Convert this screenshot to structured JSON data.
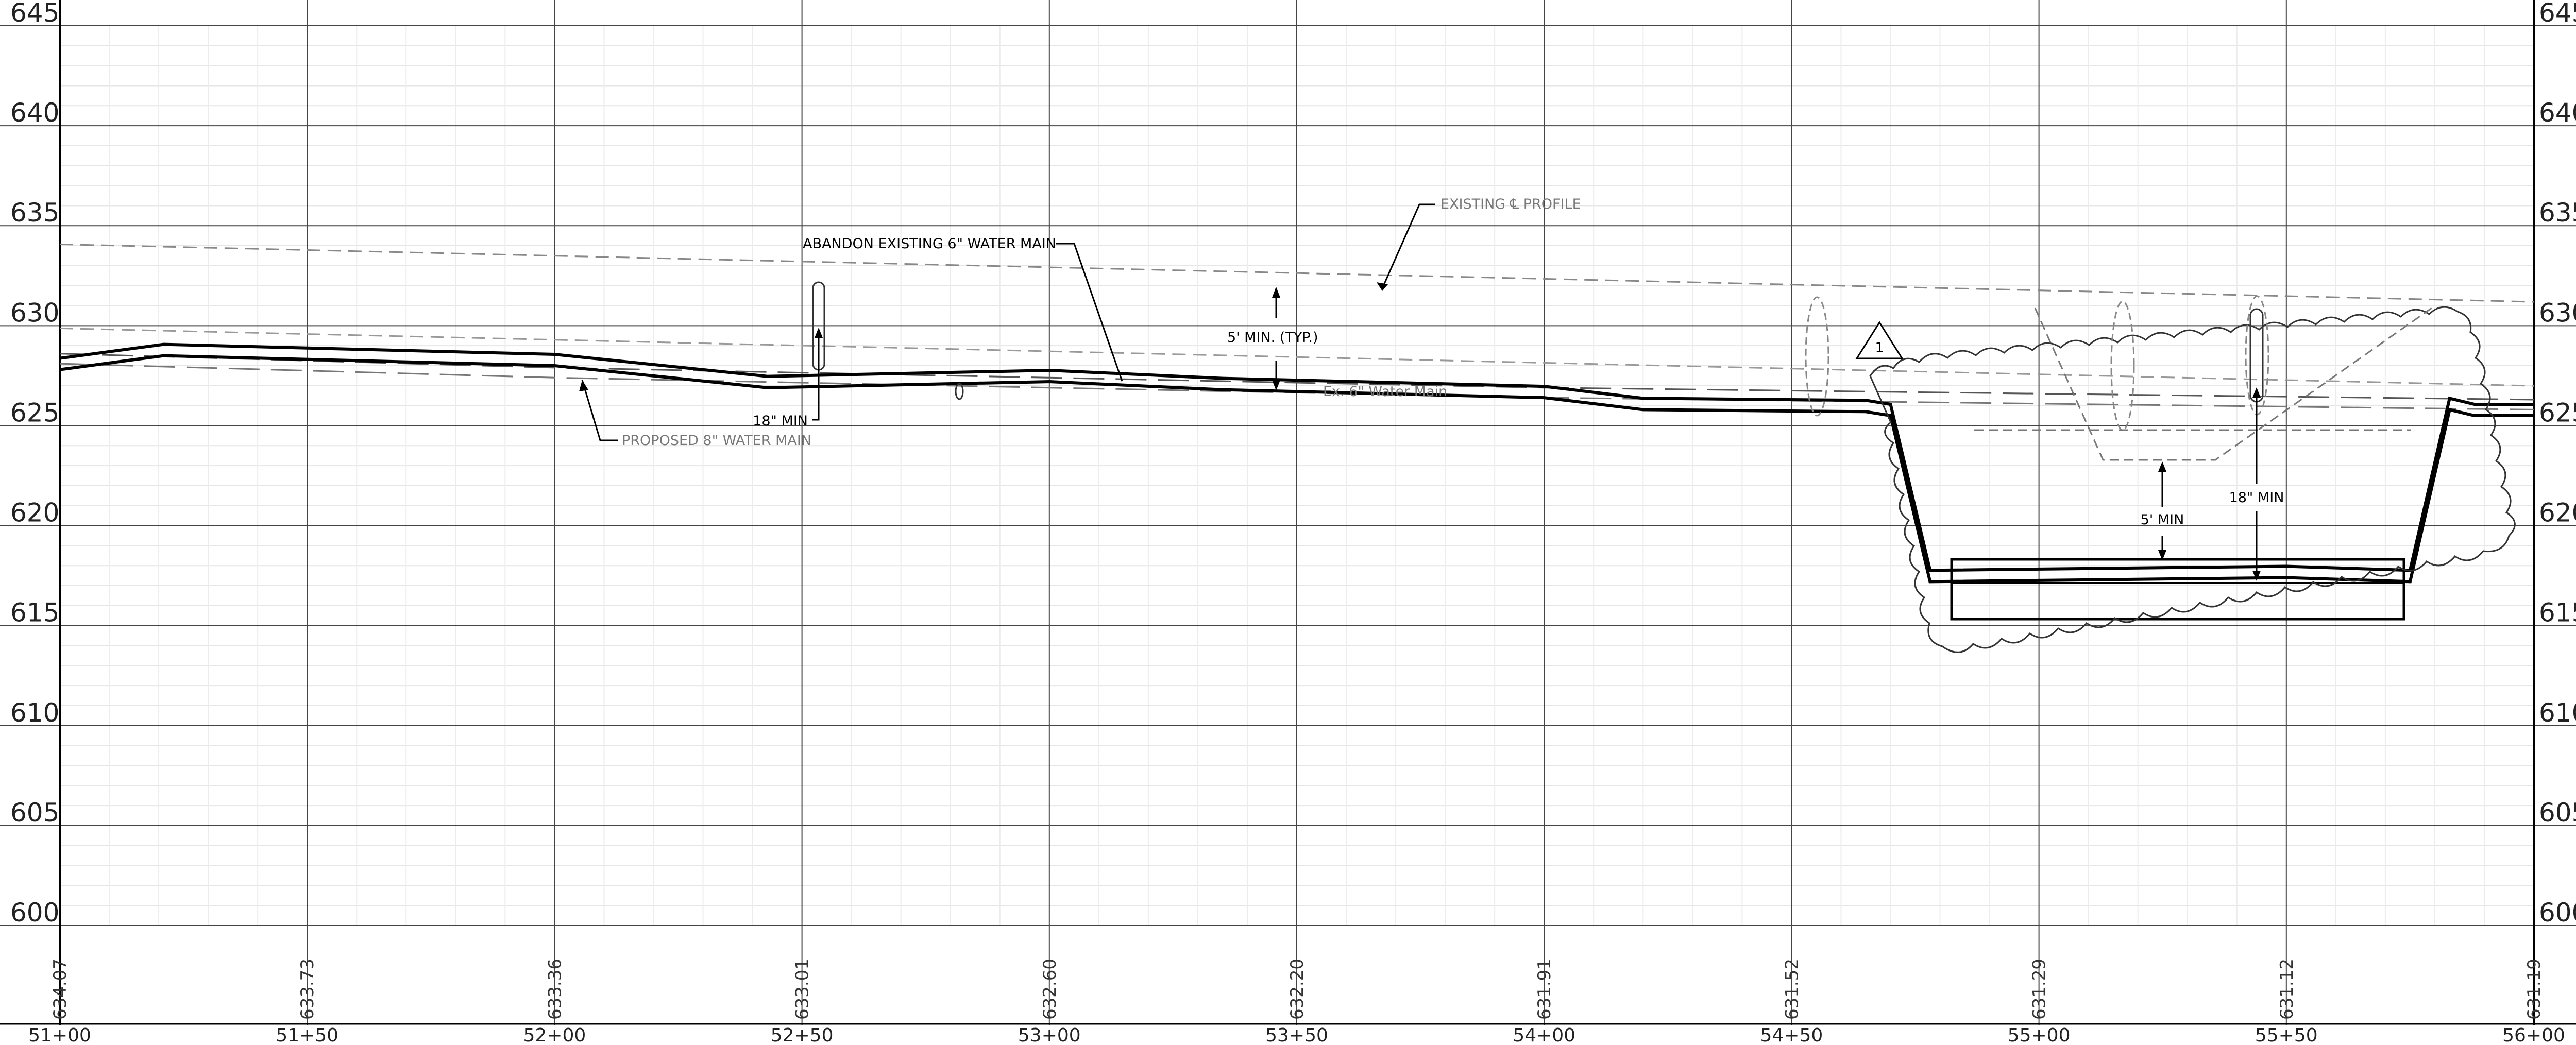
{
  "profile": {
    "elevation_labels": [
      "645",
      "640",
      "635",
      "630",
      "625",
      "620",
      "615",
      "610",
      "605",
      "600"
    ],
    "station_labels": [
      "51+00",
      "51+50",
      "52+00",
      "52+50",
      "53+00",
      "53+50",
      "54+00",
      "54+50",
      "55+00",
      "55+50",
      "56+00"
    ],
    "ground_elevations": [
      "634.07",
      "633.73",
      "633.36",
      "633.01",
      "632.60",
      "632.20",
      "631.91",
      "631.52",
      "631.29",
      "631.12",
      "631.19"
    ],
    "notes": {
      "abandon": "ABANDON EXISTING 6\" WATER MAIN",
      "existing_cl": "EXISTING ℄ PROFILE",
      "proposed": "PROPOSED 8\" WATER MAIN",
      "five_min_typ": "5' MIN. (TYP.)",
      "eighteen_min_left": "18\" MIN",
      "ex_water_main": "Ex. 6\" Water Main",
      "five_min": "5' MIN",
      "eighteen_min_right": "18\" MIN",
      "revision": "1"
    }
  },
  "chart_data": {
    "type": "line",
    "xlabel": "",
    "ylabel": "",
    "x_categories": [
      "51+00",
      "51+50",
      "52+00",
      "52+50",
      "53+00",
      "53+50",
      "54+00",
      "54+50",
      "55+00",
      "55+50",
      "56+00"
    ],
    "ylim": [
      600,
      645
    ],
    "grid": true,
    "series": [
      {
        "name": "PROPOSED 8\" WATER MAIN",
        "x": [
          5100,
          5121,
          5200,
          5243,
          5300,
          5335,
          5400,
          5420,
          5465,
          5470,
          5478,
          5550,
          5575,
          5583,
          5588,
          5600
        ],
        "y": [
          627.8,
          628.5,
          628.0,
          626.9,
          627.2,
          626.8,
          626.4,
          625.8,
          625.7,
          625.5,
          617.2,
          617.4,
          617.2,
          625.8,
          625.5,
          625.5
        ]
      },
      {
        "name": "EXISTING ℄ PROFILE",
        "x": [
          5100,
          5600
        ],
        "y": [
          634.07,
          631.19
        ]
      },
      {
        "name": "Ex. 6\" Water Main",
        "x": [
          5100,
          5200,
          5300,
          5400,
          5500,
          5600
        ],
        "y": [
          628.6,
          627.9,
          627.4,
          626.9,
          626.6,
          626.3
        ]
      }
    ]
  }
}
